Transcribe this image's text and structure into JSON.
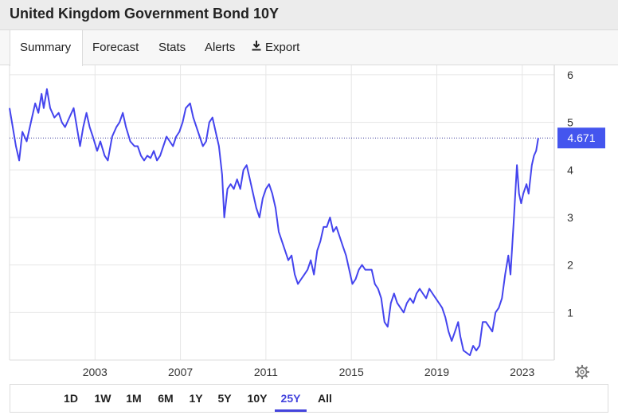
{
  "page": {
    "title": "United Kingdom Government Bond 10Y"
  },
  "tabs": [
    {
      "label": "Summary",
      "active": true
    },
    {
      "label": "Forecast",
      "active": false
    },
    {
      "label": "Stats",
      "active": false
    },
    {
      "label": "Alerts",
      "active": false
    },
    {
      "label": "Export",
      "active": false,
      "icon": "download-icon"
    }
  ],
  "ranges": [
    {
      "label": "1D",
      "active": false
    },
    {
      "label": "1W",
      "active": false
    },
    {
      "label": "1M",
      "active": false
    },
    {
      "label": "6M",
      "active": false
    },
    {
      "label": "1Y",
      "active": false
    },
    {
      "label": "5Y",
      "active": false
    },
    {
      "label": "10Y",
      "active": false
    },
    {
      "label": "25Y",
      "active": true
    },
    {
      "label": "All",
      "active": false
    }
  ],
  "settings_icon": "gear-icon",
  "colors": {
    "line": "#4444ee",
    "accent": "#4444dd",
    "last_badge": "#4455ee"
  },
  "chart_data": {
    "type": "line",
    "title": "",
    "xlabel": "",
    "ylabel": "",
    "grid": true,
    "xlim": [
      1999.0,
      2024.5
    ],
    "ylim": [
      0,
      6.2
    ],
    "x_ticks": [
      2003,
      2007,
      2011,
      2015,
      2019,
      2023
    ],
    "x_tick_labels": [
      "2003",
      "2007",
      "2011",
      "2015",
      "2019",
      "2023"
    ],
    "y_ticks": [
      1,
      2,
      3,
      4,
      5,
      6
    ],
    "y_tick_labels": [
      "1",
      "2",
      "3",
      "4",
      "5",
      "6"
    ],
    "last_value": 4.671,
    "last_value_label": "4.671",
    "series": [
      {
        "name": "",
        "points": [
          [
            1999.0,
            5.3
          ],
          [
            1999.15,
            4.9
          ],
          [
            1999.3,
            4.5
          ],
          [
            1999.45,
            4.2
          ],
          [
            1999.6,
            4.8
          ],
          [
            1999.8,
            4.6
          ],
          [
            2000.0,
            5.0
          ],
          [
            2000.2,
            5.4
          ],
          [
            2000.35,
            5.2
          ],
          [
            2000.5,
            5.6
          ],
          [
            2000.6,
            5.3
          ],
          [
            2000.75,
            5.7
          ],
          [
            2000.9,
            5.3
          ],
          [
            2001.1,
            5.1
          ],
          [
            2001.3,
            5.2
          ],
          [
            2001.45,
            5.0
          ],
          [
            2001.6,
            4.9
          ],
          [
            2001.8,
            5.1
          ],
          [
            2002.0,
            5.3
          ],
          [
            2002.15,
            4.9
          ],
          [
            2002.3,
            4.5
          ],
          [
            2002.45,
            4.9
          ],
          [
            2002.6,
            5.2
          ],
          [
            2002.75,
            4.9
          ],
          [
            2002.9,
            4.7
          ],
          [
            2003.1,
            4.4
          ],
          [
            2003.25,
            4.6
          ],
          [
            2003.45,
            4.3
          ],
          [
            2003.6,
            4.2
          ],
          [
            2003.8,
            4.7
          ],
          [
            2004.0,
            4.9
          ],
          [
            2004.15,
            5.0
          ],
          [
            2004.3,
            5.2
          ],
          [
            2004.45,
            4.9
          ],
          [
            2004.65,
            4.6
          ],
          [
            2004.85,
            4.5
          ],
          [
            2005.0,
            4.5
          ],
          [
            2005.15,
            4.3
          ],
          [
            2005.3,
            4.2
          ],
          [
            2005.45,
            4.3
          ],
          [
            2005.6,
            4.25
          ],
          [
            2005.75,
            4.4
          ],
          [
            2005.9,
            4.2
          ],
          [
            2006.05,
            4.3
          ],
          [
            2006.2,
            4.5
          ],
          [
            2006.35,
            4.7
          ],
          [
            2006.5,
            4.6
          ],
          [
            2006.65,
            4.5
          ],
          [
            2006.8,
            4.7
          ],
          [
            2006.95,
            4.8
          ],
          [
            2007.1,
            5.0
          ],
          [
            2007.25,
            5.3
          ],
          [
            2007.45,
            5.4
          ],
          [
            2007.6,
            5.1
          ],
          [
            2007.75,
            4.9
          ],
          [
            2007.9,
            4.7
          ],
          [
            2008.05,
            4.5
          ],
          [
            2008.2,
            4.6
          ],
          [
            2008.35,
            5.0
          ],
          [
            2008.5,
            5.1
          ],
          [
            2008.65,
            4.8
          ],
          [
            2008.8,
            4.5
          ],
          [
            2008.95,
            3.9
          ],
          [
            2009.05,
            3.0
          ],
          [
            2009.2,
            3.6
          ],
          [
            2009.35,
            3.7
          ],
          [
            2009.5,
            3.6
          ],
          [
            2009.65,
            3.8
          ],
          [
            2009.8,
            3.6
          ],
          [
            2009.95,
            4.0
          ],
          [
            2010.1,
            4.1
          ],
          [
            2010.25,
            3.8
          ],
          [
            2010.4,
            3.5
          ],
          [
            2010.55,
            3.2
          ],
          [
            2010.7,
            3.0
          ],
          [
            2010.85,
            3.4
          ],
          [
            2011.0,
            3.6
          ],
          [
            2011.15,
            3.7
          ],
          [
            2011.3,
            3.5
          ],
          [
            2011.45,
            3.2
          ],
          [
            2011.6,
            2.7
          ],
          [
            2011.75,
            2.5
          ],
          [
            2011.9,
            2.3
          ],
          [
            2012.05,
            2.1
          ],
          [
            2012.2,
            2.2
          ],
          [
            2012.35,
            1.8
          ],
          [
            2012.5,
            1.6
          ],
          [
            2012.65,
            1.7
          ],
          [
            2012.8,
            1.8
          ],
          [
            2012.95,
            1.9
          ],
          [
            2013.1,
            2.1
          ],
          [
            2013.25,
            1.8
          ],
          [
            2013.4,
            2.3
          ],
          [
            2013.55,
            2.5
          ],
          [
            2013.7,
            2.8
          ],
          [
            2013.85,
            2.8
          ],
          [
            2014.0,
            3.0
          ],
          [
            2014.15,
            2.7
          ],
          [
            2014.3,
            2.8
          ],
          [
            2014.45,
            2.6
          ],
          [
            2014.6,
            2.4
          ],
          [
            2014.75,
            2.2
          ],
          [
            2014.9,
            1.9
          ],
          [
            2015.05,
            1.6
          ],
          [
            2015.2,
            1.7
          ],
          [
            2015.35,
            1.9
          ],
          [
            2015.5,
            2.0
          ],
          [
            2015.65,
            1.9
          ],
          [
            2015.8,
            1.9
          ],
          [
            2015.95,
            1.9
          ],
          [
            2016.1,
            1.6
          ],
          [
            2016.25,
            1.5
          ],
          [
            2016.4,
            1.3
          ],
          [
            2016.55,
            0.8
          ],
          [
            2016.7,
            0.7
          ],
          [
            2016.85,
            1.2
          ],
          [
            2017.0,
            1.4
          ],
          [
            2017.15,
            1.2
          ],
          [
            2017.3,
            1.1
          ],
          [
            2017.45,
            1.0
          ],
          [
            2017.6,
            1.2
          ],
          [
            2017.75,
            1.3
          ],
          [
            2017.9,
            1.2
          ],
          [
            2018.05,
            1.4
          ],
          [
            2018.2,
            1.5
          ],
          [
            2018.35,
            1.4
          ],
          [
            2018.5,
            1.3
          ],
          [
            2018.65,
            1.5
          ],
          [
            2018.8,
            1.4
          ],
          [
            2018.95,
            1.3
          ],
          [
            2019.1,
            1.2
          ],
          [
            2019.25,
            1.1
          ],
          [
            2019.4,
            0.9
          ],
          [
            2019.55,
            0.6
          ],
          [
            2019.7,
            0.4
          ],
          [
            2019.85,
            0.6
          ],
          [
            2020.0,
            0.8
          ],
          [
            2020.1,
            0.5
          ],
          [
            2020.25,
            0.2
          ],
          [
            2020.4,
            0.15
          ],
          [
            2020.55,
            0.1
          ],
          [
            2020.7,
            0.3
          ],
          [
            2020.85,
            0.2
          ],
          [
            2021.0,
            0.3
          ],
          [
            2021.15,
            0.8
          ],
          [
            2021.3,
            0.8
          ],
          [
            2021.45,
            0.7
          ],
          [
            2021.6,
            0.6
          ],
          [
            2021.75,
            1.0
          ],
          [
            2021.9,
            1.1
          ],
          [
            2022.05,
            1.3
          ],
          [
            2022.2,
            1.8
          ],
          [
            2022.35,
            2.2
          ],
          [
            2022.45,
            1.8
          ],
          [
            2022.6,
            2.9
          ],
          [
            2022.75,
            4.1
          ],
          [
            2022.85,
            3.5
          ],
          [
            2022.95,
            3.3
          ],
          [
            2023.05,
            3.5
          ],
          [
            2023.2,
            3.7
          ],
          [
            2023.3,
            3.5
          ],
          [
            2023.45,
            4.1
          ],
          [
            2023.55,
            4.3
          ],
          [
            2023.65,
            4.4
          ],
          [
            2023.75,
            4.671
          ]
        ]
      }
    ]
  }
}
